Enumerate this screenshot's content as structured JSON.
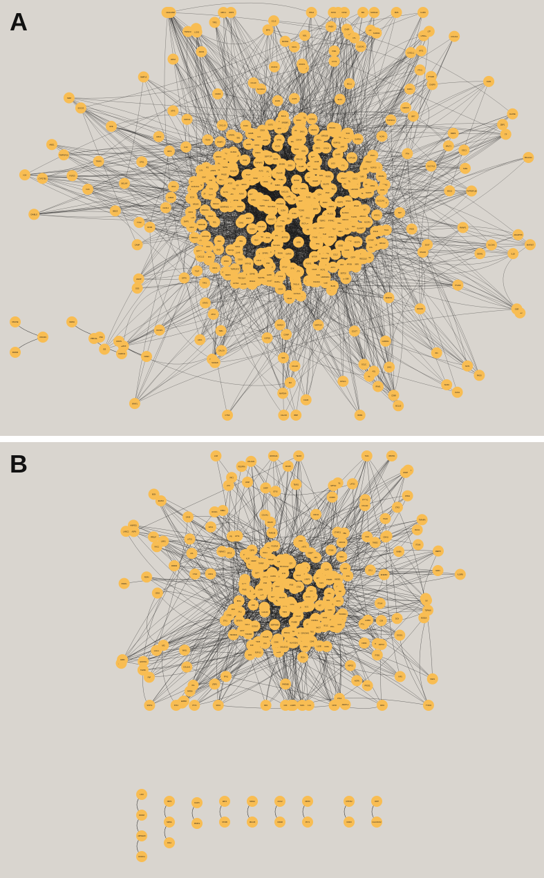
{
  "colors": {
    "background": "#d9d5cf",
    "node_fill": "#f8bd53",
    "edge": "#1a1a1a",
    "label": "#1b1b1b"
  },
  "panels": [
    {
      "id": "A",
      "label": "A",
      "nodes": [
        "SLCO2B1",
        "ARTT6",
        "CHRNA1",
        "HNF4A",
        "FRMD4A",
        "CDH6",
        "CDHAR",
        "ELOVL2",
        "ATP1A4",
        "VCAN",
        "ADCY8",
        "SEMA3E",
        "ZNF335",
        "PLXNB1",
        "PEX1",
        "TNFAIP3",
        "TUBA8",
        "HMGCR",
        "GSTA4",
        "GRIN2A",
        "GLDC",
        "MBTPS2",
        "UBE2E2",
        "RGS2",
        "ITIH4",
        "FCGR2A",
        "SELE",
        "STAT1",
        "CCR4",
        "UPK1B",
        "UPK3A",
        "ELMO1",
        "AFF2",
        "HDAC4",
        "IRF8",
        "VEGFB",
        "ETV1",
        "NCOA3",
        "IL6",
        "IL1B",
        "TP53",
        "MYC",
        "CDH1",
        "CASP8",
        "EGFR",
        "TNF",
        "AKT1",
        "JUN",
        "MAPK3",
        "PTGS2",
        "IL10",
        "VEGFA",
        "CXCL8",
        "CCL2",
        "FOS",
        "STAT3",
        "SRC",
        "HIF1A",
        "MMP9",
        "ESR1",
        "APP",
        "IGF1",
        "TLR4",
        "SPP1",
        "MTOR",
        "PPARG",
        "CD44",
        "BCL2",
        "SOX2",
        "CTNNB1",
        "KRAS",
        "PIK3CA",
        "ERBB2",
        "NOTCH1",
        "SMAD3",
        "TGFB1",
        "NFKB1",
        "RELA",
        "IL1A",
        "ICAM1",
        "CCND1",
        "MDM2",
        "ACTB",
        "CRP",
        "ALB",
        "INS",
        "GAPDH",
        "TFRC",
        "UBB",
        "SNAI2",
        "FN1",
        "ZEB1",
        "CDK4",
        "E2F1",
        "RB1",
        "CDKN2A",
        "PTEN",
        "ATM",
        "BRCA1",
        "CHEK2",
        "PDGFRB",
        "KDR",
        "FGF2",
        "ANGPT2",
        "SHH",
        "WNT5A",
        "CXCR4",
        "CCR5",
        "TLR2",
        "IRAK1",
        "MYD88",
        "NLRP3",
        "CASP3",
        "PARP1",
        "XIAP",
        "BIRC5",
        "BAX",
        "BAD",
        "HSPA8",
        "HSP90AA1",
        "EP300",
        "CREBBP",
        "HDAC1",
        "SIRT1",
        "DNMT1",
        "EZH2",
        "KMT2A",
        "SETD2",
        "NCOR1",
        "POLR2A",
        "SF3B1",
        "SRSF1",
        "HNRNPA1",
        "PABPC1",
        "EIF4E",
        "RPS6",
        "RPL5",
        "NPM1",
        "NCL",
        "FBL",
        "DDX5",
        "YBX1",
        "PCNA",
        "MCM2",
        "ORC1",
        "CDC6",
        "CDK1",
        "CCNB1",
        "PLK1",
        "AURKA",
        "BUB1",
        "MAD2L1",
        "KIF11",
        "TOP2A",
        "MKI67",
        "FOXM1",
        "MYBL2",
        "E2F3",
        "TFDP1",
        "SP1",
        "YY1",
        "CTCF",
        "RAD21",
        "SMC3",
        "STAG2",
        "NIPBL",
        "PDS5A",
        "WAPL",
        "ZNF148",
        "ZNF281",
        "ZNF740",
        "ZBTB7A",
        "KLF4",
        "KLF5",
        "SLC2A1",
        "LDHA",
        "PKM",
        "HK2",
        "PFKFB3",
        "ENO1",
        "ALDOA",
        "TPI1",
        "PGK1",
        "G6PD",
        "IDH1",
        "IDH2",
        "SDHA",
        "FH",
        "ACO2",
        "CS",
        "OGDH",
        "SUCLG1",
        "MDH2",
        "GOT2",
        "GLS",
        "ASNS",
        "PHGDH",
        "PSAT1",
        "SHMT2",
        "MTHFD2",
        "DHFR",
        "TYMS",
        "RRM2",
        "DUT",
        "UNG",
        "OGG1",
        "APEX1",
        "XRCC1",
        "LIG3",
        "POLB",
        "MSH2",
        "MLH1",
        "PMS2",
        "MSH6",
        "EXO1",
        "RAD51",
        "BRCA2",
        "PALB2",
        "XRCC2",
        "XRCC3",
        "RAD52",
        "KU70",
        "KU80",
        "PRKDC",
        "LIG4",
        "XRCC4",
        "NHEJ1",
        "DCLRE1C",
        "ARTEMIS",
        "H2AFX",
        "MDC1",
        "RNF8",
        "RNF168",
        "53BP1",
        "RIF1",
        "SHLD1",
        "REV7",
        "CST1",
        "TEN1",
        "STN1",
        "POT1",
        "TPP1",
        "TINF2",
        "TERF1",
        "TERF2",
        "RAP1",
        "TERT",
        "DKC1",
        "NOP10",
        "NHP2",
        "GAR1",
        "WRAP53",
        "CTC1",
        "PINX1",
        "ZNF827",
        "SLX4",
        "MUS81",
        "EME1",
        "GEN1",
        "BLM",
        "WRN",
        "RECQL",
        "RECQL4",
        "RECQL5",
        "FANCA",
        "FANCD2",
        "FANCI",
        "FANCJ",
        "SLC4A4",
        "SLC6A4",
        "SLC12A2",
        "SLC16A1",
        "ABCB1",
        "ABCC1",
        "ABCG2",
        "CYP3A4",
        "CYP2D6",
        "UGT1A1",
        "GSTP1",
        "NQO1",
        "HMOX1",
        "SOD2",
        "CAT",
        "GPX1",
        "PRDX1",
        "TXN",
        "TXNRD1",
        "KEAP1",
        "NFE2L2",
        "SQSTM1",
        "MAP1LC3B",
        "BECN1",
        "ATG5",
        "ATG7",
        "ULK1",
        "AMPK",
        "LKB1",
        "TSC2",
        "RHEB",
        "RPTOR",
        "RICTOR",
        "DEPTOR",
        "MLST8",
        "AKT2",
        "PDK1",
        "PIK3R1",
        "IRS1",
        "INSR",
        "IGF1R",
        "IGFBP3",
        "GHR",
        "LEPR",
        "ADIPOQ",
        "PPARA",
        "CPT1A",
        "ACACA",
        "FASN",
        "SREBF1",
        "SCD",
        "HMGCS1",
        "LDLR",
        "PCSK9",
        "APOB",
        "APOE",
        "LPL",
        "CETP",
        "ABCA1",
        "NR1H3",
        "RXRA",
        "VDR",
        "THRB",
        "PGR",
        "AR",
        "NR3C1",
        "ESR2",
        "GPER1",
        "SERPINE1",
        "PLAU",
        "PLAUR",
        "MMP2",
        "MMP3",
        "TIMP1",
        "TIMP2",
        "COL1A1",
        "COL1A2",
        "COL3A1",
        "ELN",
        "LOX",
        "FBN1",
        "THBS1",
        "SPARC",
        "POSTN",
        "TNC",
        "VIM",
        "DES",
        "ACTA2",
        "CNN1",
        "MYH11",
        "TAGLN",
        "GRIN2B",
        "DKK1",
        "SFRP1",
        "AXIN2",
        "LGR5",
        "ASCL2",
        "OLFM4",
        "PROM1",
        "ALDH1A1",
        "CD34",
        "KIT",
        "FLT3",
        "CSF1R",
        "PTPRC",
        "CD4",
        "CD8A",
        "CD3E",
        "CD19",
        "MS4A1",
        "FOXP3",
        "IL2RA",
        "CTLA4",
        "PDCD1",
        "CD274",
        "LAG3",
        "HAVCR2",
        "TIGIT",
        "ICOS",
        "CD28",
        "GZMB",
        "PRF1",
        "IFNG",
        "IL17A",
        "IL21",
        "IL23A",
        "IL12B",
        "TBX21",
        "GATA3",
        "RORC",
        "BCL6",
        "PRDM1",
        "IRF4",
        "XBP1",
        "SDC1",
        "TNFRSF17",
        "CD38",
        "SLAMF7",
        "BTK",
        "SYK",
        "LYN",
        "BLNK",
        "PLCG2",
        "PRKCB",
        "CARD11",
        "MALT1",
        "BCL10",
        "NFKBIA",
        "IKBKB",
        "CHUK",
        "TRAF6",
        "TAK1",
        "MAP3K7",
        "TAB1",
        "TAB2",
        "MAP2K4",
        "MAPK8",
        "MAPK14",
        "ATF2",
        "ELK1",
        "SRF",
        "EGR1",
        "ATF3",
        "DUSP1",
        "SOCS3",
        "CISH",
        "PIM1",
        "BCL2L1",
        "MCL1",
        "BCL2L11",
        "PMAIP1",
        "BBC3",
        "CASP9",
        "APAF1",
        "CYCS",
        "DIABLO",
        "HTRA2",
        "AIFM1",
        "ENDOG",
        "DFFA",
        "DFFB",
        "PARP2",
        "RIPK1",
        "RIPK3",
        "MLKL",
        "ZBP1",
        "FADD",
        "TRADD",
        "TNFRSF1A",
        "FAS",
        "FASLG",
        "TNFSF10",
        "CFLAR",
        "BID",
        "IL18",
        "IL1RN",
        "IL33",
        "TSLP",
        "CCL5",
        "CXCL10",
        "CXCL12",
        "CX3CL1",
        "CCL20",
        "OTC",
        "CPS1",
        "ASS1",
        "ASL",
        "ARG1",
        "NOS2",
        "NOS3",
        "ODC1",
        "SRM",
        "SMS",
        "AMD1",
        "SAT1",
        "PAOX",
        "SMOX",
        "SLC7A11",
        "SLC3A2",
        "GCLC",
        "GCLM",
        "GSS",
        "GSR",
        "FTH1",
        "FTL",
        "TF",
        "SLC40A1",
        "HAMP",
        "HFE",
        "TFR2",
        "HJV",
        "BMP6",
        "SMAD4",
        "ID1",
        "ID2",
        "ID3",
        "RUNX1",
        "RUNX2",
        "SP7",
        "BGLAP",
        "ALPL",
        "IBSP",
        "DMP1",
        "SOST",
        "PHEX",
        "FGF23",
        "KL",
        "CYP27B1",
        "CYP24A1",
        "PTH",
        "PTH1R",
        "CASR",
        "CALCA",
        "CALCR",
        "TNFSF11",
        "TNFRSF11B",
        "ACP5",
        "CTSK",
        "MMP13",
        "ADAMTS5",
        "ACAN",
        "COL2A1",
        "SOX9",
        "PRG4",
        "COMP",
        "CHI3L1",
        "LCN2",
        "MPO",
        "ELANE",
        "PRTN3",
        "AZU1",
        "DEFA1",
        "CAMP",
        "S100A8",
        "S100A9",
        "S100A12",
        "LTF",
        "CEACAM8",
        "CD177",
        "OLR1",
        "ARG2",
        "CD163",
        "MRC1",
        "CD68",
        "ITGAM",
        "ITGAX",
        "CLEC4C",
        "IRF7",
        "IFNA1",
        "IFNB1",
        "ISG15",
        "MX1",
        "OAS1",
        "RSAD2",
        "IFIT1",
        "IFIT3",
        "IFI44",
        "HERC5",
        "USP18",
        "STAT2",
        "IRF9",
        "JAK1",
        "TYK2",
        "IFNAR1"
      ],
      "isolated_groups": [
        [
          "DNASE",
          "UNC119",
          "PARD3"
        ],
        [
          "CENIA",
          "PPAP2A"
        ],
        [
          "PBX1AL",
          "CARD11"
        ],
        [
          "GNOS",
          "GNE3"
        ]
      ]
    },
    {
      "id": "B",
      "label": "B",
      "nodes": [
        "SLC24A3",
        "ARTAS0B",
        "SNX14",
        "EIF2AK1",
        "RAET1",
        "PLPP3",
        "BPFA",
        "EFEMP1",
        "HDAC4",
        "ATP2B4",
        "FXN",
        "LYN",
        "ITGAM",
        "PTPN6",
        "SERPINB9",
        "LILRB2",
        "CD36",
        "SPI1",
        "RB1",
        "GATA2",
        "MYB",
        "TAL1",
        "KLF1",
        "HBB",
        "HBA2",
        "EPOR",
        "GYPA",
        "ALAS2",
        "TFRC",
        "FECH",
        "UROD",
        "HMBS",
        "SLC4A1",
        "SPTA1",
        "ANK1",
        "EPB42",
        "BCL11A",
        "ZBTB7A",
        "LMO2",
        "LDB1",
        "RUNX1",
        "CBFB",
        "ETV6",
        "FLI1",
        "ERG",
        "MECOM",
        "HOXA9",
        "MEIS1",
        "PBX3",
        "CEBPA",
        "CEBPE",
        "GFI1",
        "IRF8",
        "CSF3R",
        "CSF2RB",
        "IL3RA",
        "KIT",
        "FLT3",
        "MPL",
        "JAK2",
        "CALR",
        "THPO",
        "GP1BA",
        "ITGA2B",
        "ITGB3",
        "PF4",
        "PPBP",
        "VWF",
        "SELP",
        "GP6",
        "P2RY12",
        "TBXA2R",
        "F2R",
        "PRKCQ",
        "LAT",
        "ZAP70",
        "LCK",
        "CD247",
        "CD3G",
        "CD2",
        "CD5",
        "CD7",
        "IL7R",
        "TCF7",
        "LEF1",
        "BCL11B",
        "NOTCH3",
        "HES1",
        "DTX1",
        "PTCRA",
        "RAG1",
        "RAG2",
        "DNTT",
        "VPREB1",
        "IGLL1",
        "CD79A",
        "CD79B",
        "PAX5",
        "EBF1",
        "IKZF1",
        "IKZF3",
        "ID2",
        "NFIL3",
        "EOMES",
        "TBX21",
        "NCAM1",
        "KLRD1",
        "KLRK1",
        "NCR1",
        "FCGR3A",
        "GNLY",
        "NKG7",
        "CST7",
        "CTSW",
        "SH2D1B",
        "TYROBP",
        "HCST",
        "CD160",
        "KIR2DL1",
        "KIR3DL1",
        "LILRB1",
        "HLA-E",
        "B2M",
        "TAP1",
        "TAP2",
        "TAPBP",
        "PSMB8",
        "PSMB9",
        "CIITA",
        "HLA-DRA",
        "HLA-DQA1",
        "CD74",
        "CTSS",
        "LGMN",
        "IFI30",
        "MARCH1",
        "CD83",
        "CCR7",
        "LAMP3",
        "FSCN1",
        "IL4I1",
        "IDO1",
        "CD80",
        "CD86",
        "CD40",
        "TNFRSF4",
        "TNFRSF9",
        "ICOSLG",
        "PDCD1LG2",
        "VSIR",
        "SIGLEC15",
        "NECTIN2",
        "PVR",
        "LGALS9",
        "HMGB1",
        "CEACAM1",
        "ENTPD1",
        "NT5E",
        "ADORA2A",
        "PTGER2",
        "PTGER4",
        "IL10RA",
        "IL10RB",
        "TGFBR1",
        "TGFBR2",
        "TGFB3",
        "LRRC32",
        "GARP",
        "ITGB8",
        "ITGAV",
        "THBS2",
        "LTBP1",
        "FBLN5",
        "EFEMP2",
        "MFAP4",
        "MGP",
        "DCN",
        "LUM",
        "BGN",
        "FMOD",
        "ASPN",
        "OGN",
        "PRELP",
        "COMP2",
        "COL11A1",
        "COL10A1",
        "INHBA",
        "CTHRC1",
        "FAP",
        "PDGFRA",
        "PDPN",
        "TWIST1",
        "PRRX1",
        "SNAI1",
        "ZEB2",
        "CDH2",
        "CDH11",
        "ITGA5",
        "ITGA11",
        "TNFAIP6",
        "NRP1",
        "PTX3",
        "CTGF",
        "CYR61",
        "ANKRD1",
        "AMOTL2",
        "LATS1",
        "LATS2",
        "YAP1",
        "WWTR1",
        "TEAD1",
        "TEAD4",
        "STK3",
        "STK4",
        "SAV1",
        "MOB1A",
        "NF2",
        "FRMD6",
        "KIBRA",
        "CRB3",
        "PALS1",
        "PATJ",
        "SCRIB",
        "DLG1",
        "LLGL1",
        "PARD6B",
        "PRKCI",
        "PARD3B",
        "CDC42",
        "RAC1",
        "RHOA",
        "ROCK1",
        "ROCK2",
        "MYL9",
        "LIMK1",
        "CFL1",
        "PFN1",
        "ENAH",
        "VASP",
        "ARPC2",
        "WASL",
        "NCK1",
        "CRK",
        "DOCK1",
        "ELMO2",
        "PXN",
        "PTK2",
        "TLN1",
        "VCL",
        "ZYX",
        "ILK",
        "LIMS1",
        "PARVA",
        "FERMT2",
        "ITGB1",
        "ITGA6",
        "LAMB3",
        "LAMC2",
        "LAMA5",
        "COL4A1",
        "COL4A2",
        "NID1",
        "HSPG2",
        "AGRN",
        "SDC4",
        "GPC1",
        "CD9",
        "CD63",
        "CD81",
        "TSPAN8",
        "ERBB3",
        "NRG1",
        "SPRY4",
        "DUSP6",
        "ETV4",
        "ETV5",
        "EPHA2",
        "AXL",
        "MERTK",
        "GAS6",
        "PROS1",
        "TYRO3"
      ],
      "isolated_groups": [
        [
          "LIFR",
          "PARD3",
          "ARHGEF3",
          "DOCK11"
        ],
        [
          "NRP2",
          "NRP2L",
          "FFA1"
        ],
        [
          "FAAP1",
          "PNIPF2"
        ],
        [
          "ERF2",
          "STK3B"
        ],
        [
          "NR4A2",
          "RNAI15"
        ],
        [
          "ALKL2",
          "CD02R"
        ],
        [
          "MKRN",
          "PCY1"
        ],
        [
          "CHST12",
          "CD3L5"
        ],
        [
          "CD87",
          "CALCOCO2"
        ]
      ]
    }
  ]
}
